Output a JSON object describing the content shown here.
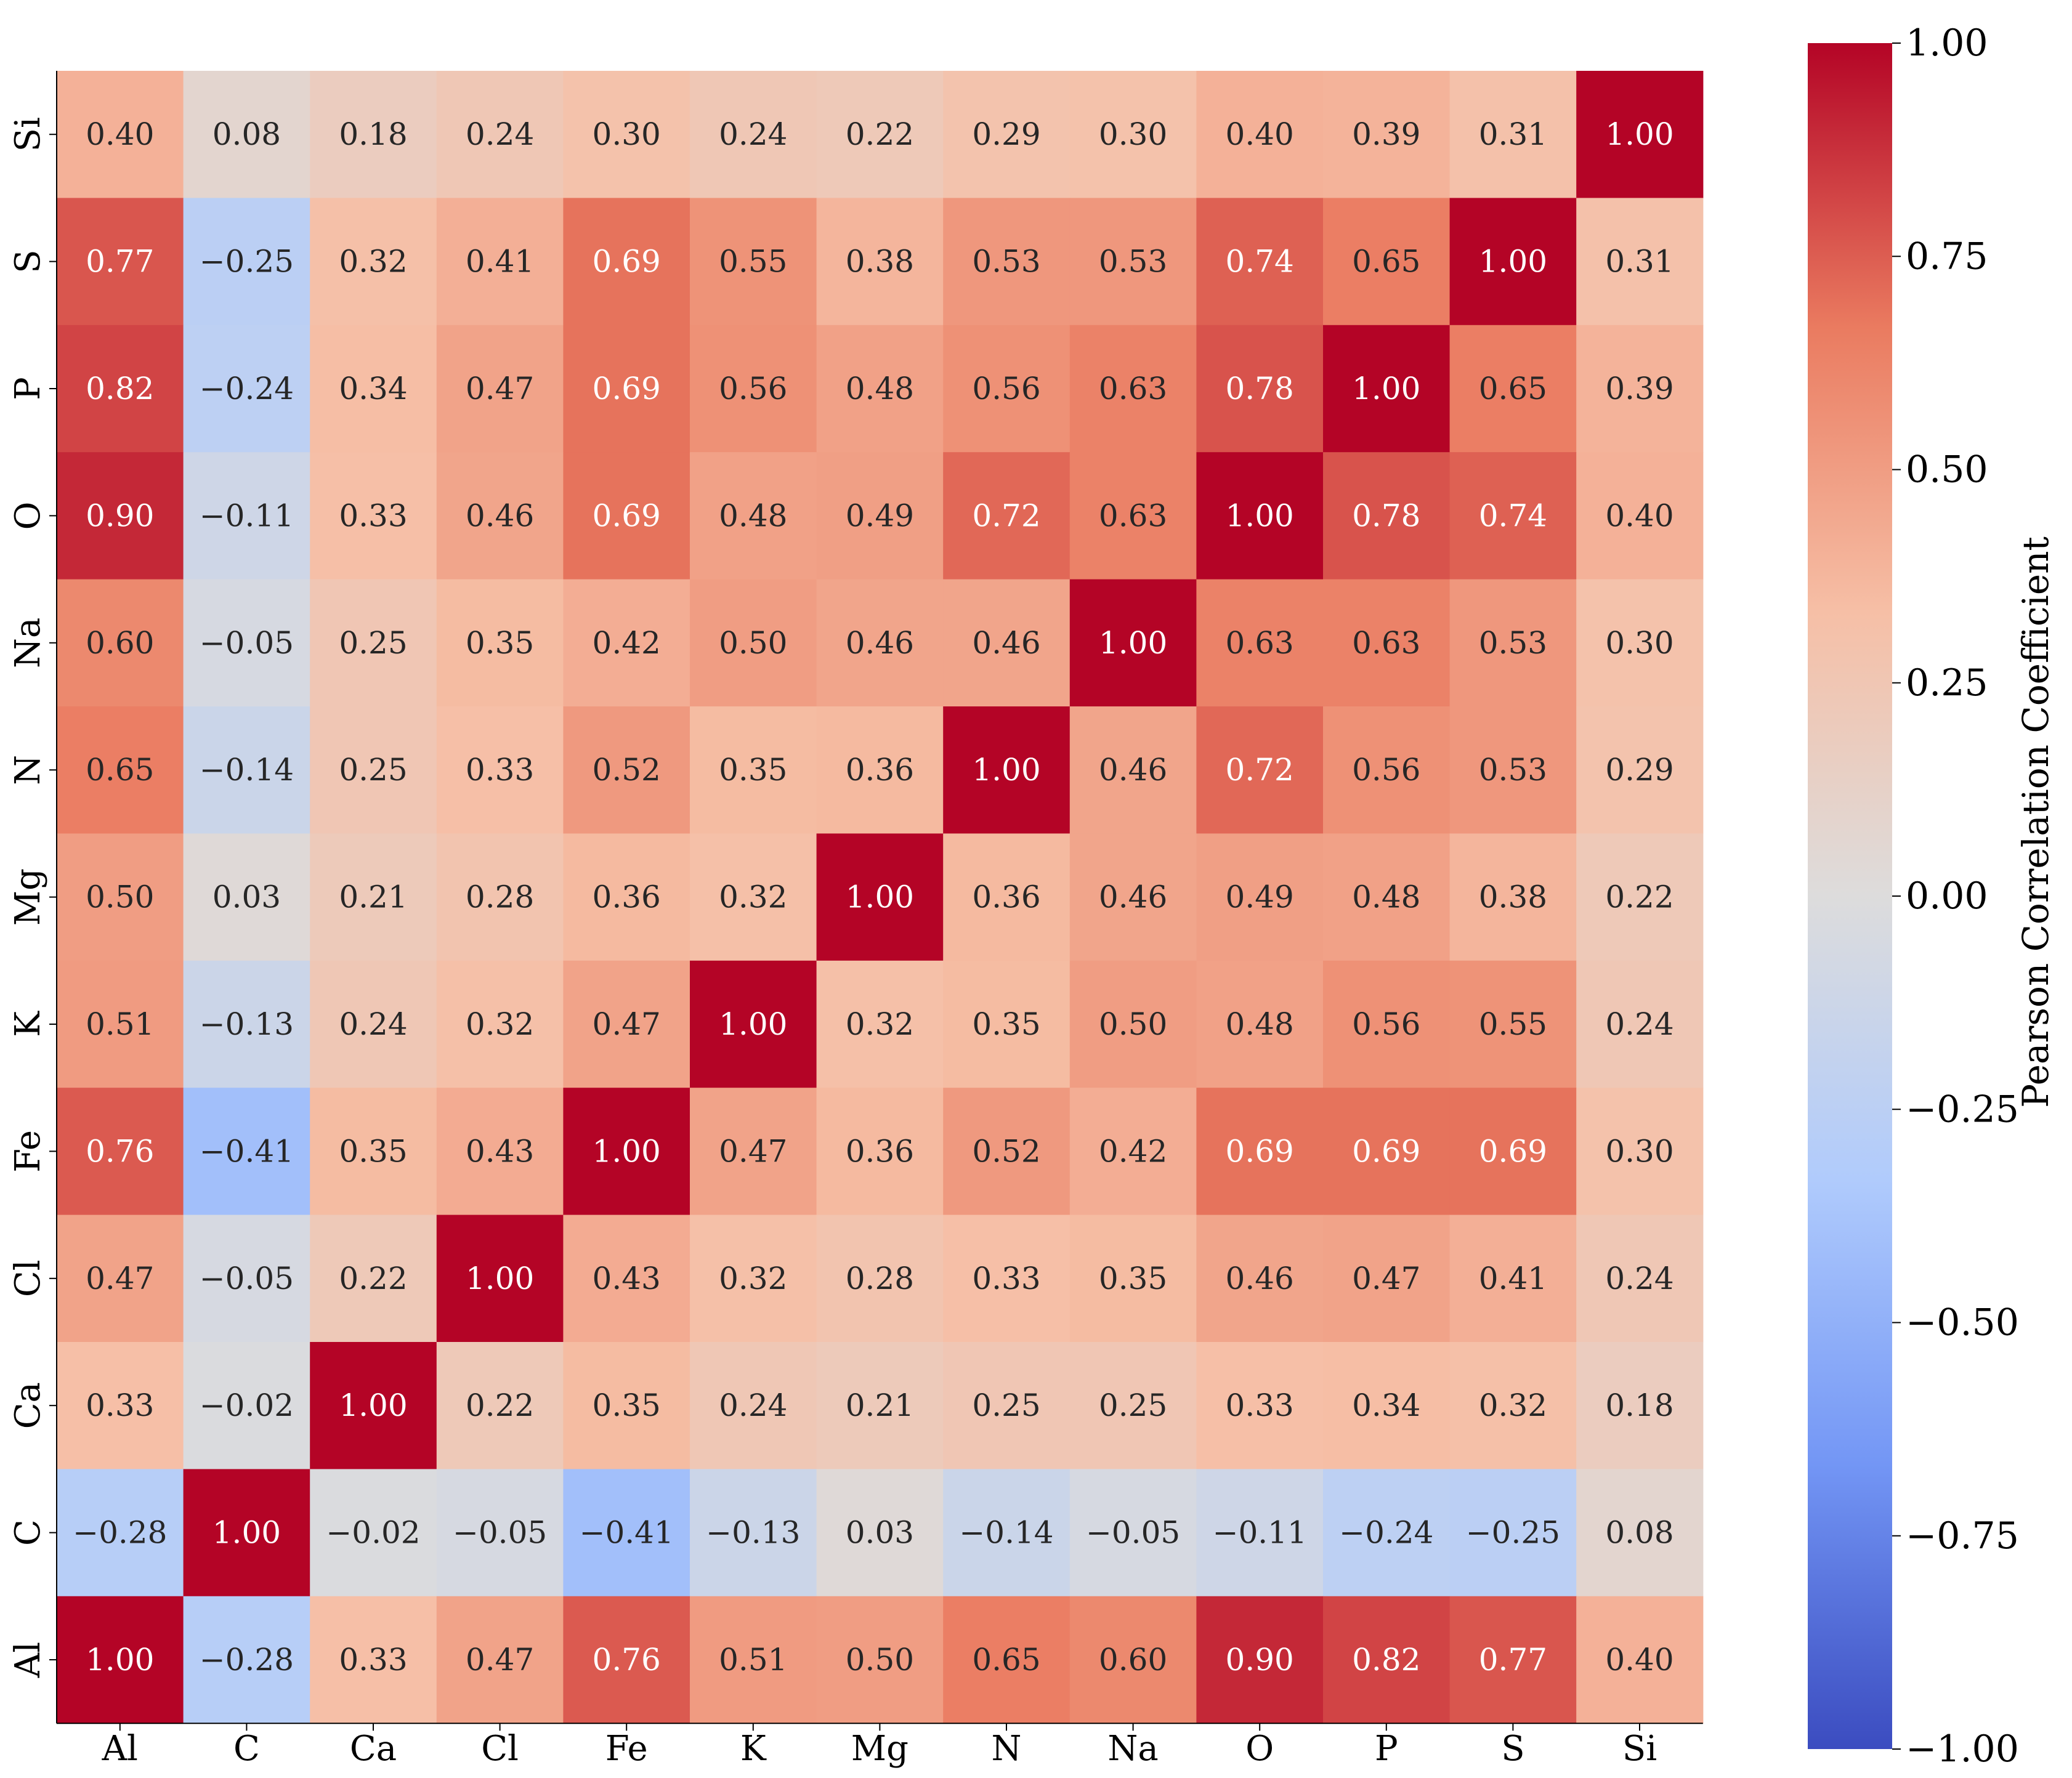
{
  "chart_data": {
    "type": "heatmap",
    "title": "",
    "xlabel": "",
    "ylabel": "",
    "x_labels": [
      "Al",
      "C",
      "Ca",
      "Cl",
      "Fe",
      "K",
      "Mg",
      "N",
      "Na",
      "O",
      "P",
      "S",
      "Si"
    ],
    "y_labels_top_to_bottom": [
      "Si",
      "S",
      "P",
      "O",
      "Na",
      "N",
      "Mg",
      "K",
      "Fe",
      "Cl",
      "Ca",
      "C",
      "Al"
    ],
    "values_by_row_top_to_bottom": [
      [
        0.4,
        0.08,
        0.18,
        0.24,
        0.3,
        0.24,
        0.22,
        0.29,
        0.3,
        0.4,
        0.39,
        0.31,
        1.0
      ],
      [
        0.77,
        -0.25,
        0.32,
        0.41,
        0.69,
        0.55,
        0.38,
        0.53,
        0.53,
        0.74,
        0.65,
        1.0,
        0.31
      ],
      [
        0.82,
        -0.24,
        0.34,
        0.47,
        0.69,
        0.56,
        0.48,
        0.56,
        0.63,
        0.78,
        1.0,
        0.65,
        0.39
      ],
      [
        0.9,
        -0.11,
        0.33,
        0.46,
        0.69,
        0.48,
        0.49,
        0.72,
        0.63,
        1.0,
        0.78,
        0.74,
        0.4
      ],
      [
        0.6,
        -0.05,
        0.25,
        0.35,
        0.42,
        0.5,
        0.46,
        0.46,
        1.0,
        0.63,
        0.63,
        0.53,
        0.3
      ],
      [
        0.65,
        -0.14,
        0.25,
        0.33,
        0.52,
        0.35,
        0.36,
        1.0,
        0.46,
        0.72,
        0.56,
        0.53,
        0.29
      ],
      [
        0.5,
        0.03,
        0.21,
        0.28,
        0.36,
        0.32,
        1.0,
        0.36,
        0.46,
        0.49,
        0.48,
        0.38,
        0.22
      ],
      [
        0.51,
        -0.13,
        0.24,
        0.32,
        0.47,
        1.0,
        0.32,
        0.35,
        0.5,
        0.48,
        0.56,
        0.55,
        0.24
      ],
      [
        0.76,
        -0.41,
        0.35,
        0.43,
        1.0,
        0.47,
        0.36,
        0.52,
        0.42,
        0.69,
        0.69,
        0.69,
        0.3
      ],
      [
        0.47,
        -0.05,
        0.22,
        1.0,
        0.43,
        0.32,
        0.28,
        0.33,
        0.35,
        0.46,
        0.47,
        0.41,
        0.24
      ],
      [
        0.33,
        -0.02,
        1.0,
        0.22,
        0.35,
        0.24,
        0.21,
        0.25,
        0.25,
        0.33,
        0.34,
        0.32,
        0.18
      ],
      [
        -0.28,
        1.0,
        -0.02,
        -0.05,
        -0.41,
        -0.13,
        0.03,
        -0.14,
        -0.05,
        -0.11,
        -0.24,
        -0.25,
        0.08
      ],
      [
        1.0,
        -0.28,
        0.33,
        0.47,
        0.76,
        0.51,
        0.5,
        0.65,
        0.6,
        0.9,
        0.82,
        0.77,
        0.4
      ]
    ],
    "value_format": "2 decimals, unicode minus",
    "colormap": "coolwarm",
    "colormap_stops": [
      "#3b4cc0",
      "#7396f5",
      "#b0cbfc",
      "#dddcdc",
      "#f6bfa6",
      "#ea7b60",
      "#b40426"
    ],
    "vmin": -1.0,
    "vmax": 1.0,
    "colorbar": {
      "label": "Pearson Correlation Coefficient",
      "ticks": [
        1.0,
        0.75,
        0.5,
        0.25,
        0.0,
        -0.25,
        -0.5,
        -0.75,
        -1.0
      ],
      "tick_labels": [
        "1.00",
        "0.75",
        "0.50",
        "0.25",
        "0.00",
        "−0.25",
        "−0.50",
        "−0.75",
        "−1.00"
      ]
    }
  }
}
